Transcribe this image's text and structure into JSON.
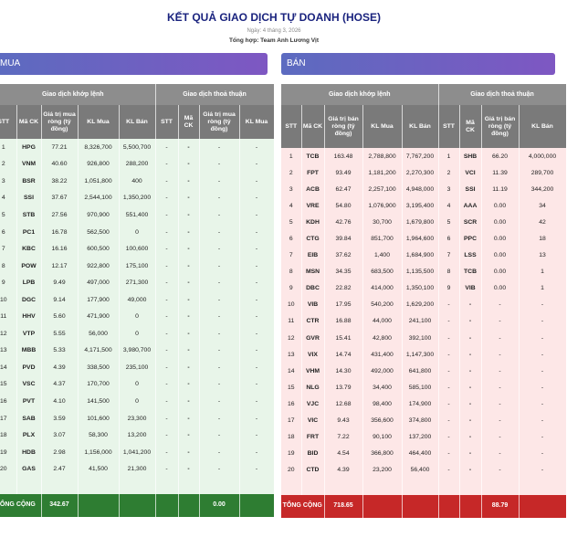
{
  "header": {
    "title": "KẾT QUẢ GIAO DỊCH TỰ DOANH (HOSE)",
    "date": "Ngày: 4 tháng 3, 2026",
    "author": "Tổng hợp: Team Anh Lương Vịt"
  },
  "mua": {
    "title": "MUA",
    "groups": [
      "Giao dịch khớp lệnh",
      "Giao dịch thoả thuận"
    ],
    "columns": [
      "STT",
      "Mã CK",
      "Giá trị mua ròng (tỷ đồng)",
      "KL Mua",
      "KL Bán",
      "STT",
      "Mã CK",
      "Giá trị mua ròng (tỷ đồng)",
      "KL Mua"
    ],
    "rows": [
      [
        "1",
        "HPG",
        "77.21",
        "8,326,700",
        "5,500,700",
        "-",
        "-",
        "-",
        "-"
      ],
      [
        "2",
        "VNM",
        "40.60",
        "926,800",
        "288,200",
        "-",
        "-",
        "-",
        "-"
      ],
      [
        "3",
        "BSR",
        "38.22",
        "1,051,800",
        "400",
        "-",
        "-",
        "-",
        "-"
      ],
      [
        "4",
        "SSI",
        "37.67",
        "2,544,100",
        "1,350,200",
        "-",
        "-",
        "-",
        "-"
      ],
      [
        "5",
        "STB",
        "27.56",
        "970,900",
        "551,400",
        "-",
        "-",
        "-",
        "-"
      ],
      [
        "6",
        "PC1",
        "16.78",
        "562,500",
        "0",
        "-",
        "-",
        "-",
        "-"
      ],
      [
        "7",
        "KBC",
        "16.16",
        "600,500",
        "100,600",
        "-",
        "-",
        "-",
        "-"
      ],
      [
        "8",
        "POW",
        "12.17",
        "922,800",
        "175,100",
        "-",
        "-",
        "-",
        "-"
      ],
      [
        "9",
        "LPB",
        "9.49",
        "497,000",
        "271,300",
        "-",
        "-",
        "-",
        "-"
      ],
      [
        "10",
        "DGC",
        "9.14",
        "177,900",
        "49,000",
        "-",
        "-",
        "-",
        "-"
      ],
      [
        "11",
        "HHV",
        "5.60",
        "471,900",
        "0",
        "-",
        "-",
        "-",
        "-"
      ],
      [
        "12",
        "VTP",
        "5.55",
        "56,000",
        "0",
        "-",
        "-",
        "-",
        "-"
      ],
      [
        "13",
        "MBB",
        "5.33",
        "4,171,500",
        "3,980,700",
        "-",
        "-",
        "-",
        "-"
      ],
      [
        "14",
        "PVD",
        "4.39",
        "338,500",
        "235,100",
        "-",
        "-",
        "-",
        "-"
      ],
      [
        "15",
        "VSC",
        "4.37",
        "170,700",
        "0",
        "-",
        "-",
        "-",
        "-"
      ],
      [
        "16",
        "PVT",
        "4.10",
        "141,500",
        "0",
        "-",
        "-",
        "-",
        "-"
      ],
      [
        "17",
        "SAB",
        "3.59",
        "101,600",
        "23,300",
        "-",
        "-",
        "-",
        "-"
      ],
      [
        "18",
        "PLX",
        "3.07",
        "58,300",
        "13,200",
        "-",
        "-",
        "-",
        "-"
      ],
      [
        "19",
        "HDB",
        "2.98",
        "1,156,000",
        "1,041,200",
        "-",
        "-",
        "-",
        "-"
      ],
      [
        "20",
        "GAS",
        "2.47",
        "41,500",
        "21,300",
        "-",
        "-",
        "-",
        "-"
      ]
    ],
    "total": {
      "label": "TỔNG CỘNG",
      "match": "342.67",
      "deal": "0.00"
    }
  },
  "ban": {
    "title": "BÁN",
    "groups": [
      "Giao dịch khớp lệnh",
      "Giao dịch thoả thuận"
    ],
    "columns": [
      "STT",
      "Mã CK",
      "Giá trị bán ròng (tỷ đồng)",
      "KL Mua",
      "KL Bán",
      "STT",
      "Mã CK",
      "Giá trị bán ròng (tỷ đồng)",
      "KL Bán"
    ],
    "rows": [
      [
        "1",
        "TCB",
        "163.48",
        "2,788,800",
        "7,767,200",
        "1",
        "SHB",
        "66.20",
        "4,000,000"
      ],
      [
        "2",
        "FPT",
        "93.49",
        "1,181,200",
        "2,270,300",
        "2",
        "VCI",
        "11.39",
        "289,700"
      ],
      [
        "3",
        "ACB",
        "62.47",
        "2,257,100",
        "4,948,000",
        "3",
        "SSI",
        "11.19",
        "344,200"
      ],
      [
        "4",
        "VRE",
        "54.80",
        "1,076,900",
        "3,195,400",
        "4",
        "AAA",
        "0.00",
        "34"
      ],
      [
        "5",
        "KDH",
        "42.76",
        "30,700",
        "1,679,800",
        "5",
        "SCR",
        "0.00",
        "42"
      ],
      [
        "6",
        "CTG",
        "39.84",
        "851,700",
        "1,964,600",
        "6",
        "PPC",
        "0.00",
        "18"
      ],
      [
        "7",
        "EIB",
        "37.62",
        "1,400",
        "1,684,900",
        "7",
        "LSS",
        "0.00",
        "13"
      ],
      [
        "8",
        "MSN",
        "34.35",
        "683,500",
        "1,135,500",
        "8",
        "TCB",
        "0.00",
        "1"
      ],
      [
        "9",
        "DBC",
        "22.82",
        "414,000",
        "1,350,100",
        "9",
        "VIB",
        "0.00",
        "1"
      ],
      [
        "10",
        "VIB",
        "17.95",
        "540,200",
        "1,629,200",
        "-",
        "-",
        "-",
        "-"
      ],
      [
        "11",
        "CTR",
        "16.88",
        "44,000",
        "241,100",
        "-",
        "-",
        "-",
        "-"
      ],
      [
        "12",
        "GVR",
        "15.41",
        "42,800",
        "392,100",
        "-",
        "-",
        "-",
        "-"
      ],
      [
        "13",
        "VIX",
        "14.74",
        "431,400",
        "1,147,300",
        "-",
        "-",
        "-",
        "-"
      ],
      [
        "14",
        "VHM",
        "14.30",
        "492,000",
        "641,800",
        "-",
        "-",
        "-",
        "-"
      ],
      [
        "15",
        "NLG",
        "13.79",
        "34,400",
        "585,100",
        "-",
        "-",
        "-",
        "-"
      ],
      [
        "16",
        "VJC",
        "12.68",
        "98,400",
        "174,900",
        "-",
        "-",
        "-",
        "-"
      ],
      [
        "17",
        "VIC",
        "9.43",
        "356,600",
        "374,800",
        "-",
        "-",
        "-",
        "-"
      ],
      [
        "18",
        "FRT",
        "7.22",
        "90,100",
        "137,200",
        "-",
        "-",
        "-",
        "-"
      ],
      [
        "19",
        "BID",
        "4.54",
        "366,800",
        "464,400",
        "-",
        "-",
        "-",
        "-"
      ],
      [
        "20",
        "CTD",
        "4.39",
        "23,200",
        "56,400",
        "-",
        "-",
        "-",
        "-"
      ]
    ],
    "total": {
      "label": "TỔNG CỘNG",
      "match": "718.65",
      "deal": "88.79"
    }
  }
}
